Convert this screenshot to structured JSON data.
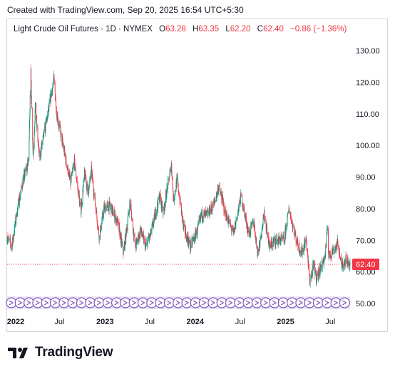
{
  "caption": "Created with TradingView.com, Sep 20, 2025 16:54 UTC+5:30",
  "legend": {
    "symbol": "Light Crude Oil Futures · 1D · NYMEX",
    "open_key": "O",
    "open": "63.28",
    "high_key": "H",
    "high": "63.35",
    "low_key": "L",
    "low": "62.20",
    "close_key": "C",
    "close": "62.40",
    "change": "−0.86 (−1.36%)"
  },
  "brand": {
    "name": "TradingView",
    "logo_icon": "tradingview-logo-icon"
  },
  "colors": {
    "up": "#089981",
    "down": "#f23645",
    "axis_text": "#131722",
    "frame": "#d1d4dc",
    "event": "#7e57c2"
  },
  "chart_data": {
    "type": "candlestick",
    "title": "Light Crude Oil Futures",
    "interval": "1D",
    "exchange": "NYMEX",
    "ylim": [
      47,
      133
    ],
    "y_ticks": [
      50,
      60,
      70,
      80,
      90,
      100,
      110,
      120,
      130
    ],
    "y_tick_labels": [
      "50.00",
      "60.00",
      "70.00",
      "80.00",
      "90.00",
      "100.00",
      "110.00",
      "120.00",
      "130.00"
    ],
    "x_ticks": [
      "2022",
      "Jul",
      "2023",
      "Jul",
      "2024",
      "Jul",
      "2025",
      "Jul"
    ],
    "x_tick_dates": [
      "2022-01-01",
      "2022-07-01",
      "2023-01-01",
      "2023-07-01",
      "2024-01-01",
      "2024-07-01",
      "2025-01-01",
      "2025-07-01"
    ],
    "x_range": [
      "2021-12-01",
      "2025-09-19"
    ],
    "last_price": 62.4,
    "last_price_label": "62.40",
    "grid": false,
    "price_path": [
      [
        "2021-12-01",
        71
      ],
      [
        "2021-12-20",
        68
      ],
      [
        "2022-01-10",
        79
      ],
      [
        "2022-02-01",
        88
      ],
      [
        "2022-02-25",
        95
      ],
      [
        "2022-03-07",
        123
      ],
      [
        "2022-03-16",
        97
      ],
      [
        "2022-03-25",
        112
      ],
      [
        "2022-04-10",
        96
      ],
      [
        "2022-04-25",
        102
      ],
      [
        "2022-05-15",
        110
      ],
      [
        "2022-06-08",
        121
      ],
      [
        "2022-06-20",
        110
      ],
      [
        "2022-07-10",
        102
      ],
      [
        "2022-07-25",
        96
      ],
      [
        "2022-08-15",
        88
      ],
      [
        "2022-08-30",
        95
      ],
      [
        "2022-09-25",
        79
      ],
      [
        "2022-10-10",
        91
      ],
      [
        "2022-10-25",
        85
      ],
      [
        "2022-11-07",
        92
      ],
      [
        "2022-12-09",
        71
      ],
      [
        "2022-12-28",
        80
      ],
      [
        "2023-01-20",
        81
      ],
      [
        "2023-02-20",
        76
      ],
      [
        "2023-03-17",
        66
      ],
      [
        "2023-04-12",
        82
      ],
      [
        "2023-05-04",
        68
      ],
      [
        "2023-05-25",
        73
      ],
      [
        "2023-06-15",
        68
      ],
      [
        "2023-07-05",
        72
      ],
      [
        "2023-08-10",
        84
      ],
      [
        "2023-08-25",
        79
      ],
      [
        "2023-09-27",
        94
      ],
      [
        "2023-10-05",
        83
      ],
      [
        "2023-10-20",
        89
      ],
      [
        "2023-11-15",
        74
      ],
      [
        "2023-12-12",
        68
      ],
      [
        "2024-01-10",
        73
      ],
      [
        "2024-01-26",
        78
      ],
      [
        "2024-02-20",
        78
      ],
      [
        "2024-03-20",
        82
      ],
      [
        "2024-04-05",
        87
      ],
      [
        "2024-05-01",
        79
      ],
      [
        "2024-06-04",
        72
      ],
      [
        "2024-07-05",
        84
      ],
      [
        "2024-08-05",
        72
      ],
      [
        "2024-08-25",
        76
      ],
      [
        "2024-09-10",
        66
      ],
      [
        "2024-10-07",
        78
      ],
      [
        "2024-10-28",
        68
      ],
      [
        "2024-11-20",
        70
      ],
      [
        "2024-12-26",
        70
      ],
      [
        "2025-01-15",
        80
      ],
      [
        "2025-02-10",
        71
      ],
      [
        "2025-03-05",
        66
      ],
      [
        "2025-03-25",
        70
      ],
      [
        "2025-04-09",
        57
      ],
      [
        "2025-04-25",
        62
      ],
      [
        "2025-05-05",
        58
      ],
      [
        "2025-05-28",
        62
      ],
      [
        "2025-06-10",
        65
      ],
      [
        "2025-06-20",
        75
      ],
      [
        "2025-06-24",
        65
      ],
      [
        "2025-07-15",
        67
      ],
      [
        "2025-08-01",
        69
      ],
      [
        "2025-08-15",
        62
      ],
      [
        "2025-09-01",
        64
      ],
      [
        "2025-09-19",
        62.4
      ]
    ]
  }
}
